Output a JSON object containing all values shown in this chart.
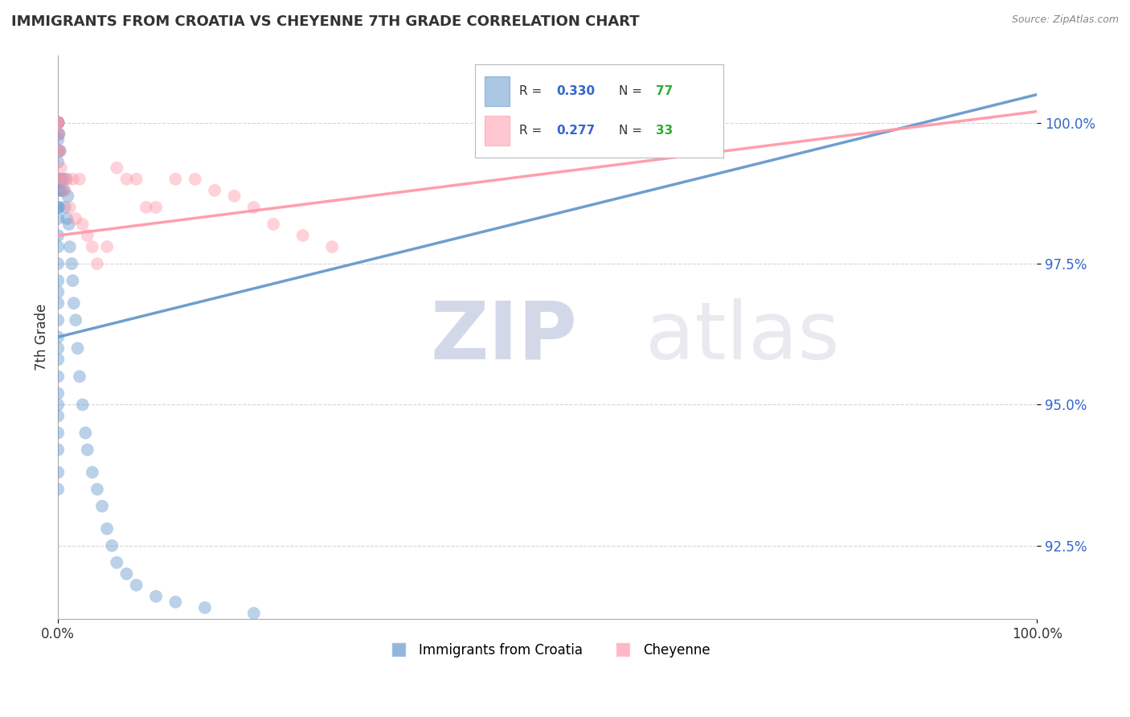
{
  "title": "IMMIGRANTS FROM CROATIA VS CHEYENNE 7TH GRADE CORRELATION CHART",
  "source": "Source: ZipAtlas.com",
  "xlabel": "",
  "ylabel": "7th Grade",
  "xmin": 0.0,
  "xmax": 100.0,
  "ymin": 91.2,
  "ymax": 101.2,
  "yticks": [
    92.5,
    95.0,
    97.5,
    100.0
  ],
  "ytick_labels": [
    "92.5%",
    "95.0%",
    "97.5%",
    "100.0%"
  ],
  "xticks": [
    0.0,
    100.0
  ],
  "xtick_labels": [
    "0.0%",
    "100.0%"
  ],
  "series1_name": "Immigrants from Croatia",
  "series1_color": "#6699CC",
  "series1_R": 0.33,
  "series1_N": 77,
  "series1_x": [
    0.0,
    0.0,
    0.0,
    0.0,
    0.0,
    0.0,
    0.0,
    0.0,
    0.0,
    0.0,
    0.0,
    0.0,
    0.0,
    0.0,
    0.0,
    0.0,
    0.0,
    0.0,
    0.0,
    0.0,
    0.0,
    0.0,
    0.0,
    0.0,
    0.0,
    0.0,
    0.0,
    0.0,
    0.0,
    0.0,
    0.0,
    0.0,
    0.0,
    0.0,
    0.0,
    0.0,
    0.0,
    0.0,
    0.0,
    0.0,
    0.1,
    0.1,
    0.1,
    0.1,
    0.2,
    0.2,
    0.3,
    0.4,
    0.5,
    0.6,
    0.7,
    0.8,
    0.9,
    1.0,
    1.1,
    1.2,
    1.4,
    1.5,
    1.6,
    1.8,
    2.0,
    2.2,
    2.5,
    2.8,
    3.0,
    3.5,
    4.0,
    4.5,
    5.0,
    5.5,
    6.0,
    7.0,
    8.0,
    10.0,
    12.0,
    15.0,
    20.0
  ],
  "series1_y": [
    100.0,
    100.0,
    100.0,
    100.0,
    100.0,
    100.0,
    100.0,
    100.0,
    100.0,
    100.0,
    100.0,
    100.0,
    100.0,
    100.0,
    99.8,
    99.7,
    99.5,
    99.3,
    99.0,
    98.8,
    98.5,
    98.3,
    98.0,
    97.8,
    97.5,
    97.2,
    97.0,
    96.8,
    96.5,
    96.2,
    96.0,
    95.8,
    95.5,
    95.2,
    95.0,
    94.8,
    94.5,
    94.2,
    93.8,
    93.5,
    99.8,
    99.5,
    99.0,
    98.5,
    99.5,
    98.8,
    99.0,
    98.8,
    99.0,
    98.8,
    98.5,
    99.0,
    98.3,
    98.7,
    98.2,
    97.8,
    97.5,
    97.2,
    96.8,
    96.5,
    96.0,
    95.5,
    95.0,
    94.5,
    94.2,
    93.8,
    93.5,
    93.2,
    92.8,
    92.5,
    92.2,
    92.0,
    91.8,
    91.6,
    91.5,
    91.4,
    91.3
  ],
  "series2_name": "Cheyenne",
  "series2_color": "#FF99AA",
  "series2_R": 0.277,
  "series2_N": 33,
  "series2_x": [
    0.0,
    0.0,
    0.0,
    0.0,
    0.0,
    0.1,
    0.2,
    0.3,
    0.5,
    0.7,
    0.9,
    1.2,
    1.5,
    1.8,
    2.2,
    2.5,
    3.0,
    3.5,
    4.0,
    5.0,
    6.0,
    7.0,
    8.0,
    9.0,
    10.0,
    12.0,
    14.0,
    16.0,
    18.0,
    20.0,
    22.0,
    25.0,
    28.0
  ],
  "series2_y": [
    100.0,
    100.0,
    100.0,
    99.5,
    99.0,
    99.8,
    99.5,
    99.2,
    99.0,
    98.8,
    99.0,
    98.5,
    99.0,
    98.3,
    99.0,
    98.2,
    98.0,
    97.8,
    97.5,
    97.8,
    99.2,
    99.0,
    99.0,
    98.5,
    98.5,
    99.0,
    99.0,
    98.8,
    98.7,
    98.5,
    98.2,
    98.0,
    97.8
  ],
  "trend1_x_start": 0.0,
  "trend1_x_end": 100.0,
  "trend1_y_start": 96.2,
  "trend1_y_end": 100.5,
  "trend2_x_start": 0.0,
  "trend2_x_end": 100.0,
  "trend2_y_start": 98.0,
  "trend2_y_end": 100.2,
  "background_color": "#FFFFFF",
  "grid_color": "#CCCCCC",
  "title_color": "#333333",
  "legend_R_color": "#3366CC",
  "legend_N_color": "#33AA33",
  "watermark_color": "#D0D0E8"
}
